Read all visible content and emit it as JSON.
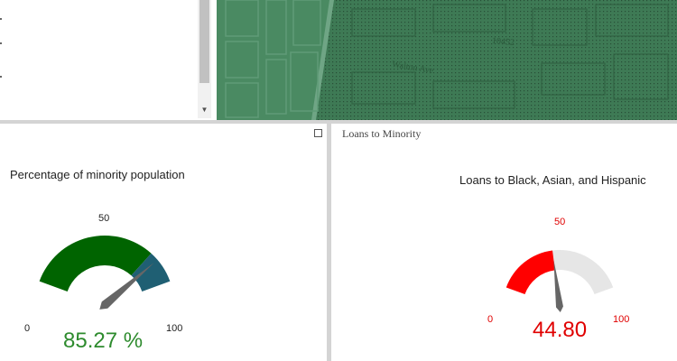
{
  "list_panel": {},
  "map": {
    "street_label": "Walton Ave",
    "zip_label": "10452"
  },
  "panels": {
    "right_header": "Loans to Minority"
  },
  "gauge_left": {
    "title": "Percentage of minority population",
    "min_label": "0",
    "mid_label": "50",
    "max_label": "100",
    "value": 85.27,
    "value_label": "85.27 %",
    "min": 0,
    "max": 100,
    "band_color": "#006400",
    "over_color": "#1f5f73",
    "needle_color": "#666666"
  },
  "gauge_right": {
    "title": "Loans to Black, Asian, and Hispanic",
    "min_label": "0",
    "mid_label": "50",
    "max_label": "100",
    "value": 44.8,
    "value_label": "44.80",
    "min": 0,
    "max": 100,
    "fill_color": "#ff0000",
    "track_color": "#e6e6e6",
    "needle_color": "#666666"
  }
}
